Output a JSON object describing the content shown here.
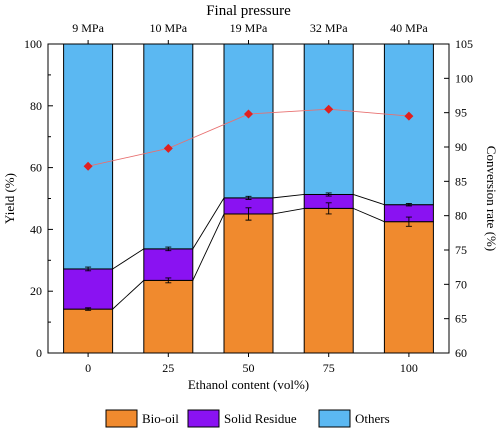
{
  "chart_data": {
    "type": "bar",
    "title": "Final pressure",
    "top_labels": [
      "9 MPa",
      "10 MPa",
      "19 MPa",
      "32 MPa",
      "40 MPa"
    ],
    "categories": [
      "0",
      "25",
      "50",
      "75",
      "100"
    ],
    "xlabel": "Ethanol content (vol%)",
    "ylabel": "Yield (%)",
    "ylim": [
      0,
      100
    ],
    "yticks": [
      "0",
      "20",
      "40",
      "60",
      "80",
      "100"
    ],
    "y2label": "Conversion rate (%)",
    "y2lim": [
      60,
      105
    ],
    "y2ticks": [
      "60",
      "65",
      "70",
      "75",
      "80",
      "85",
      "90",
      "95",
      "100",
      "105"
    ],
    "stacked": true,
    "series": [
      {
        "name": "Bio-oil",
        "color": "#F08A2E",
        "values": [
          14.2,
          23.5,
          45.0,
          46.8,
          42.5
        ],
        "errors": [
          0.4,
          0.8,
          2.0,
          1.8,
          1.5
        ]
      },
      {
        "name": "Solid Residue",
        "color": "#8A12F2",
        "values": [
          13.0,
          10.2,
          5.2,
          4.5,
          5.5
        ],
        "errors": [
          0.6,
          0.6,
          0.5,
          0.5,
          0.4
        ]
      },
      {
        "name": "Others",
        "color": "#5BB8F2",
        "values": [
          72.8,
          66.3,
          49.8,
          48.7,
          52.0
        ]
      }
    ],
    "conversion_rate": {
      "values": [
        87.2,
        89.8,
        94.8,
        95.5,
        94.5
      ],
      "marker_color": "#E02020",
      "line_color": "#E87070"
    },
    "legend_position": "bottom"
  }
}
